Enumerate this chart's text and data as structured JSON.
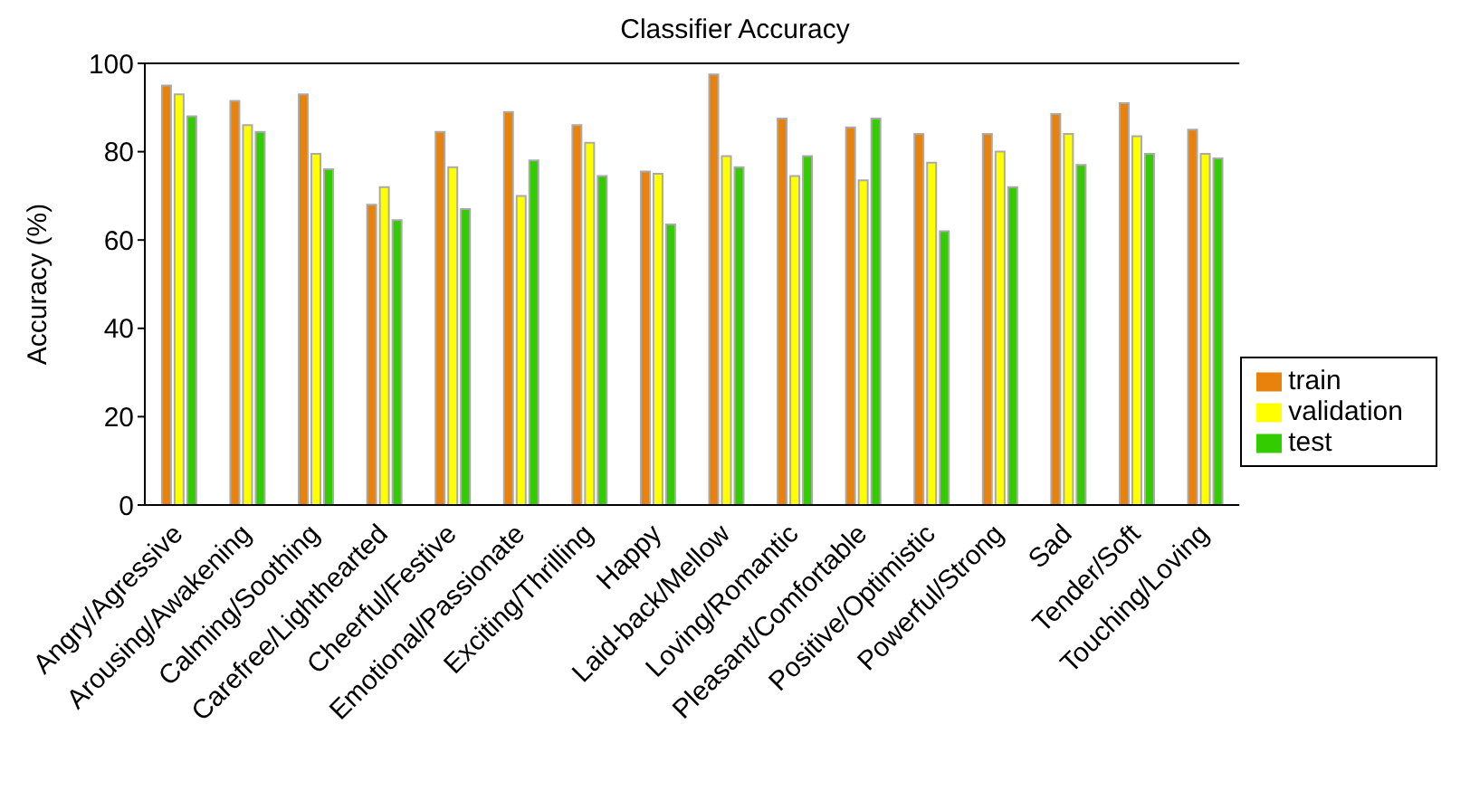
{
  "chart_data": {
    "type": "bar",
    "title": "Classifier Accuracy",
    "ylabel": "Accuracy (%)",
    "categories": [
      "Angry/Agressive",
      "Arousing/Awakening",
      "Calming/Soothing",
      "Carefree/Lighthearted",
      "Cheerful/Festive",
      "Emotional/Passionate",
      "Exciting/Thrilling",
      "Happy",
      "Laid-back/Mellow",
      "Loving/Romantic",
      "Pleasant/Comfortable",
      "Positive/Optimistic",
      "Powerful/Strong",
      "Sad",
      "Tender/Soft",
      "Touching/Loving"
    ],
    "series": [
      {
        "name": "train",
        "color": "#e8820c",
        "values": [
          95,
          91.5,
          93,
          68,
          84.5,
          89,
          86,
          75.5,
          97.5,
          87.5,
          85.5,
          84,
          84,
          88.5,
          91,
          85
        ]
      },
      {
        "name": "validation",
        "color": "#ffff00",
        "values": [
          93,
          86,
          79.5,
          72,
          76.5,
          70,
          82,
          75,
          79,
          74.5,
          73.5,
          77.5,
          80,
          84,
          83.5,
          79.5
        ]
      },
      {
        "name": "test",
        "color": "#33cc00",
        "values": [
          88,
          84.5,
          76,
          64.5,
          67,
          78,
          74.5,
          63.5,
          76.5,
          79,
          87.5,
          62,
          72,
          77,
          79.5,
          78.5
        ]
      }
    ],
    "ylim": [
      0,
      100
    ],
    "yticks": [
      0,
      20,
      40,
      60,
      80,
      100
    ],
    "legend": "right"
  }
}
